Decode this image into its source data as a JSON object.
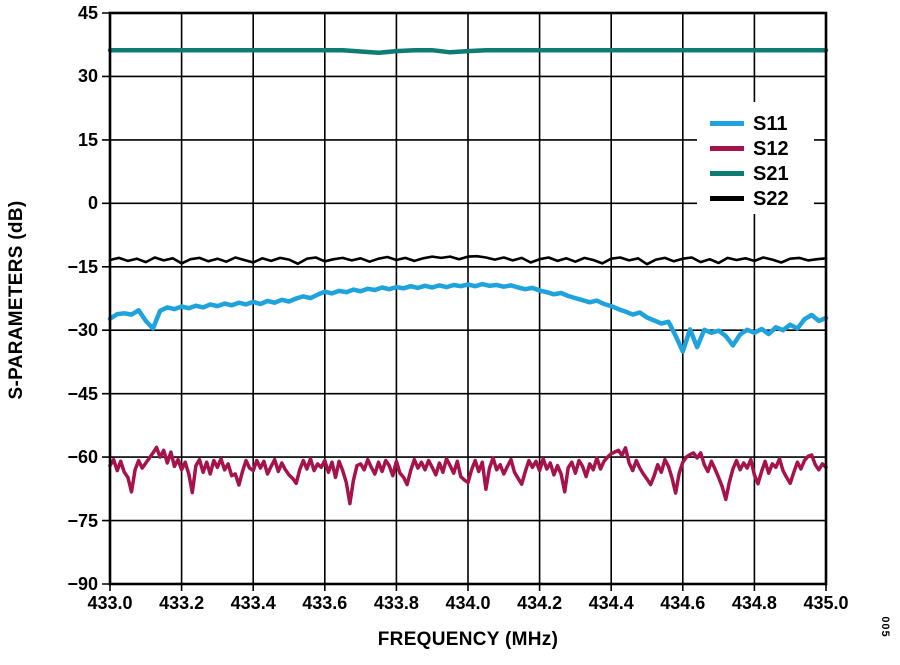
{
  "figure_code": "005",
  "legend": {
    "items": [
      {
        "label": "S11"
      },
      {
        "label": "S12"
      },
      {
        "label": "S21"
      },
      {
        "label": "S22"
      }
    ]
  },
  "axes": {
    "x_title": "FREQUENCY (MHz)",
    "y_title": "S-PARAMETERS (dB)",
    "x_tick_labels": [
      "433.0",
      "433.2",
      "433.4",
      "433.6",
      "433.8",
      "434.0",
      "434.2",
      "434.4",
      "434.6",
      "434.8",
      "435.0"
    ],
    "y_tick_labels": [
      "45",
      "30",
      "15",
      "0",
      "−15",
      "−30",
      "−45",
      "−60",
      "−75",
      "−90"
    ]
  },
  "chart_data": {
    "type": "line",
    "title": "",
    "xlabel": "FREQUENCY (MHz)",
    "ylabel": "S-PARAMETERS (dB)",
    "xlim": [
      433.0,
      435.0
    ],
    "ylim": [
      -90,
      45
    ],
    "x_tick_step": 0.2,
    "y_tick_step": 15,
    "grid": true,
    "grid_color": "#000000",
    "legend_position": "top-right",
    "series": [
      {
        "name": "S11",
        "color": "#1FA3DC",
        "line_width": 4.5,
        "x_start": 433.0,
        "x_step": 0.02,
        "values": [
          -27.3,
          -26.2,
          -26.0,
          -26.3,
          -25.3,
          -27.8,
          -29.6,
          -25.4,
          -24.6,
          -25.0,
          -24.4,
          -24.8,
          -24.2,
          -24.6,
          -23.9,
          -24.3,
          -23.7,
          -24.1,
          -23.5,
          -23.9,
          -23.3,
          -23.8,
          -23.1,
          -23.5,
          -22.8,
          -23.2,
          -22.5,
          -22.0,
          -22.4,
          -21.6,
          -20.9,
          -21.3,
          -20.7,
          -21.0,
          -20.4,
          -20.8,
          -20.2,
          -20.5,
          -19.9,
          -20.3,
          -19.8,
          -20.1,
          -19.6,
          -20.0,
          -19.5,
          -19.9,
          -19.4,
          -19.8,
          -19.3,
          -19.6,
          -19.2,
          -19.6,
          -19.1,
          -19.5,
          -19.3,
          -19.7,
          -19.4,
          -19.9,
          -20.3,
          -20.0,
          -20.6,
          -21.0,
          -21.5,
          -21.2,
          -21.9,
          -22.4,
          -22.9,
          -23.4,
          -23.0,
          -23.8,
          -24.3,
          -25.0,
          -25.6,
          -26.3,
          -25.8,
          -27.0,
          -27.7,
          -28.4,
          -28.0,
          -31.3,
          -35.0,
          -29.8,
          -34.0,
          -29.9,
          -30.6,
          -30.1,
          -31.4,
          -33.6,
          -31.0,
          -29.9,
          -30.6,
          -29.7,
          -30.9,
          -29.3,
          -30.0,
          -28.7,
          -29.6,
          -27.4,
          -26.4,
          -27.8,
          -27.1
        ]
      },
      {
        "name": "S12",
        "color": "#A6134C",
        "line_width": 3.5,
        "x_start": 433.0,
        "x_step": 0.01,
        "values": [
          -62.0,
          -60.6,
          -63.2,
          -61.0,
          -63.6,
          -64.8,
          -68.2,
          -63.0,
          -60.8,
          -62.6,
          -61.4,
          -60.2,
          -59.0,
          -57.7,
          -60.0,
          -58.4,
          -61.4,
          -58.8,
          -62.2,
          -60.6,
          -63.0,
          -61.2,
          -64.0,
          -68.4,
          -62.0,
          -60.6,
          -63.6,
          -61.2,
          -64.0,
          -60.8,
          -62.4,
          -60.4,
          -63.0,
          -61.6,
          -64.4,
          -64.0,
          -66.6,
          -63.4,
          -60.8,
          -62.6,
          -63.2,
          -60.8,
          -62.6,
          -61.0,
          -64.0,
          -62.2,
          -60.6,
          -63.4,
          -61.4,
          -63.0,
          -64.2,
          -65.0,
          -66.2,
          -63.0,
          -60.8,
          -62.8,
          -60.4,
          -63.2,
          -61.6,
          -62.4,
          -60.8,
          -63.6,
          -61.2,
          -64.8,
          -61.0,
          -63.2,
          -66.0,
          -71.0,
          -65.5,
          -62.0,
          -61.6,
          -63.0,
          -60.6,
          -62.4,
          -64.0,
          -61.2,
          -63.4,
          -60.8,
          -62.0,
          -64.4,
          -61.0,
          -63.8,
          -64.8,
          -66.5,
          -63.2,
          -60.6,
          -62.6,
          -61.2,
          -63.0,
          -60.8,
          -62.4,
          -64.2,
          -61.4,
          -63.6,
          -60.4,
          -62.0,
          -63.8,
          -61.0,
          -64.6,
          -65.4,
          -66.0,
          -63.0,
          -60.8,
          -63.4,
          -61.2,
          -67.6,
          -62.6,
          -60.2,
          -63.0,
          -61.8,
          -64.0,
          -62.2,
          -60.6,
          -63.6,
          -65.0,
          -66.4,
          -63.4,
          -60.8,
          -62.4,
          -61.0,
          -63.2,
          -60.4,
          -62.8,
          -61.4,
          -64.2,
          -62.0,
          -64.0,
          -68.2,
          -62.5,
          -61.2,
          -63.8,
          -60.8,
          -62.2,
          -64.6,
          -61.6,
          -63.0,
          -60.2,
          -62.8,
          -61.0,
          -60.0,
          -59.2,
          -58.8,
          -58.4,
          -59.6,
          -57.8,
          -61.4,
          -63.2,
          -60.8,
          -62.6,
          -64.0,
          -65.2,
          -66.5,
          -64.4,
          -61.8,
          -63.6,
          -60.6,
          -62.2,
          -65.0,
          -68.5,
          -63.8,
          -61.2,
          -60.0,
          -59.4,
          -59.0,
          -60.2,
          -59.0,
          -61.8,
          -63.4,
          -61.0,
          -62.8,
          -64.8,
          -67.0,
          -70.0,
          -66.0,
          -62.8,
          -60.8,
          -63.0,
          -61.4,
          -62.6,
          -60.6,
          -64.2,
          -66.3,
          -63.4,
          -61.0,
          -63.8,
          -61.6,
          -62.4,
          -60.4,
          -63.2,
          -64.8,
          -66.2,
          -63.6,
          -61.2,
          -62.8,
          -60.8,
          -59.8,
          -59.5,
          -61.8,
          -63.0,
          -61.6,
          -62.4
        ]
      },
      {
        "name": "S21",
        "color": "#0E7C74",
        "line_width": 4.5,
        "x_start": 433.0,
        "x_step": 0.05,
        "values": [
          36.2,
          36.2,
          36.2,
          36.2,
          36.2,
          36.2,
          36.2,
          36.2,
          36.2,
          36.2,
          36.2,
          36.2,
          36.2,
          36.2,
          35.9,
          35.6,
          36.0,
          36.2,
          36.2,
          35.7,
          36.0,
          36.2,
          36.2,
          36.2,
          36.2,
          36.2,
          36.2,
          36.2,
          36.2,
          36.2,
          36.2,
          36.2,
          36.2,
          36.2,
          36.2,
          36.2,
          36.2,
          36.2,
          36.2,
          36.2,
          36.2
        ]
      },
      {
        "name": "S22",
        "color": "#000000",
        "line_width": 2.6,
        "x_start": 433.0,
        "x_step": 0.025,
        "values": [
          -13.4,
          -12.9,
          -13.6,
          -13.1,
          -13.9,
          -12.8,
          -13.5,
          -13.0,
          -14.2,
          -13.2,
          -12.9,
          -13.7,
          -13.1,
          -13.8,
          -12.8,
          -13.4,
          -14.0,
          -13.0,
          -13.6,
          -12.9,
          -13.3,
          -14.3,
          -13.1,
          -12.8,
          -13.7,
          -13.2,
          -12.9,
          -13.5,
          -13.0,
          -13.8,
          -13.1,
          -12.7,
          -13.4,
          -12.9,
          -13.6,
          -13.0,
          -12.6,
          -12.9,
          -12.6,
          -13.2,
          -12.6,
          -12.5,
          -12.8,
          -13.3,
          -12.8,
          -13.5,
          -12.9,
          -14.0,
          -13.2,
          -12.8,
          -13.6,
          -13.0,
          -13.8,
          -12.9,
          -13.4,
          -14.2,
          -13.1,
          -12.8,
          -13.5,
          -13.0,
          -14.4,
          -13.3,
          -12.9,
          -13.7,
          -13.1,
          -12.8,
          -13.9,
          -13.2,
          -14.1,
          -12.9,
          -13.4,
          -13.0,
          -13.6,
          -12.8,
          -13.3,
          -14.0,
          -13.1,
          -12.9,
          -13.5,
          -13.2,
          -13.0
        ]
      }
    ]
  }
}
